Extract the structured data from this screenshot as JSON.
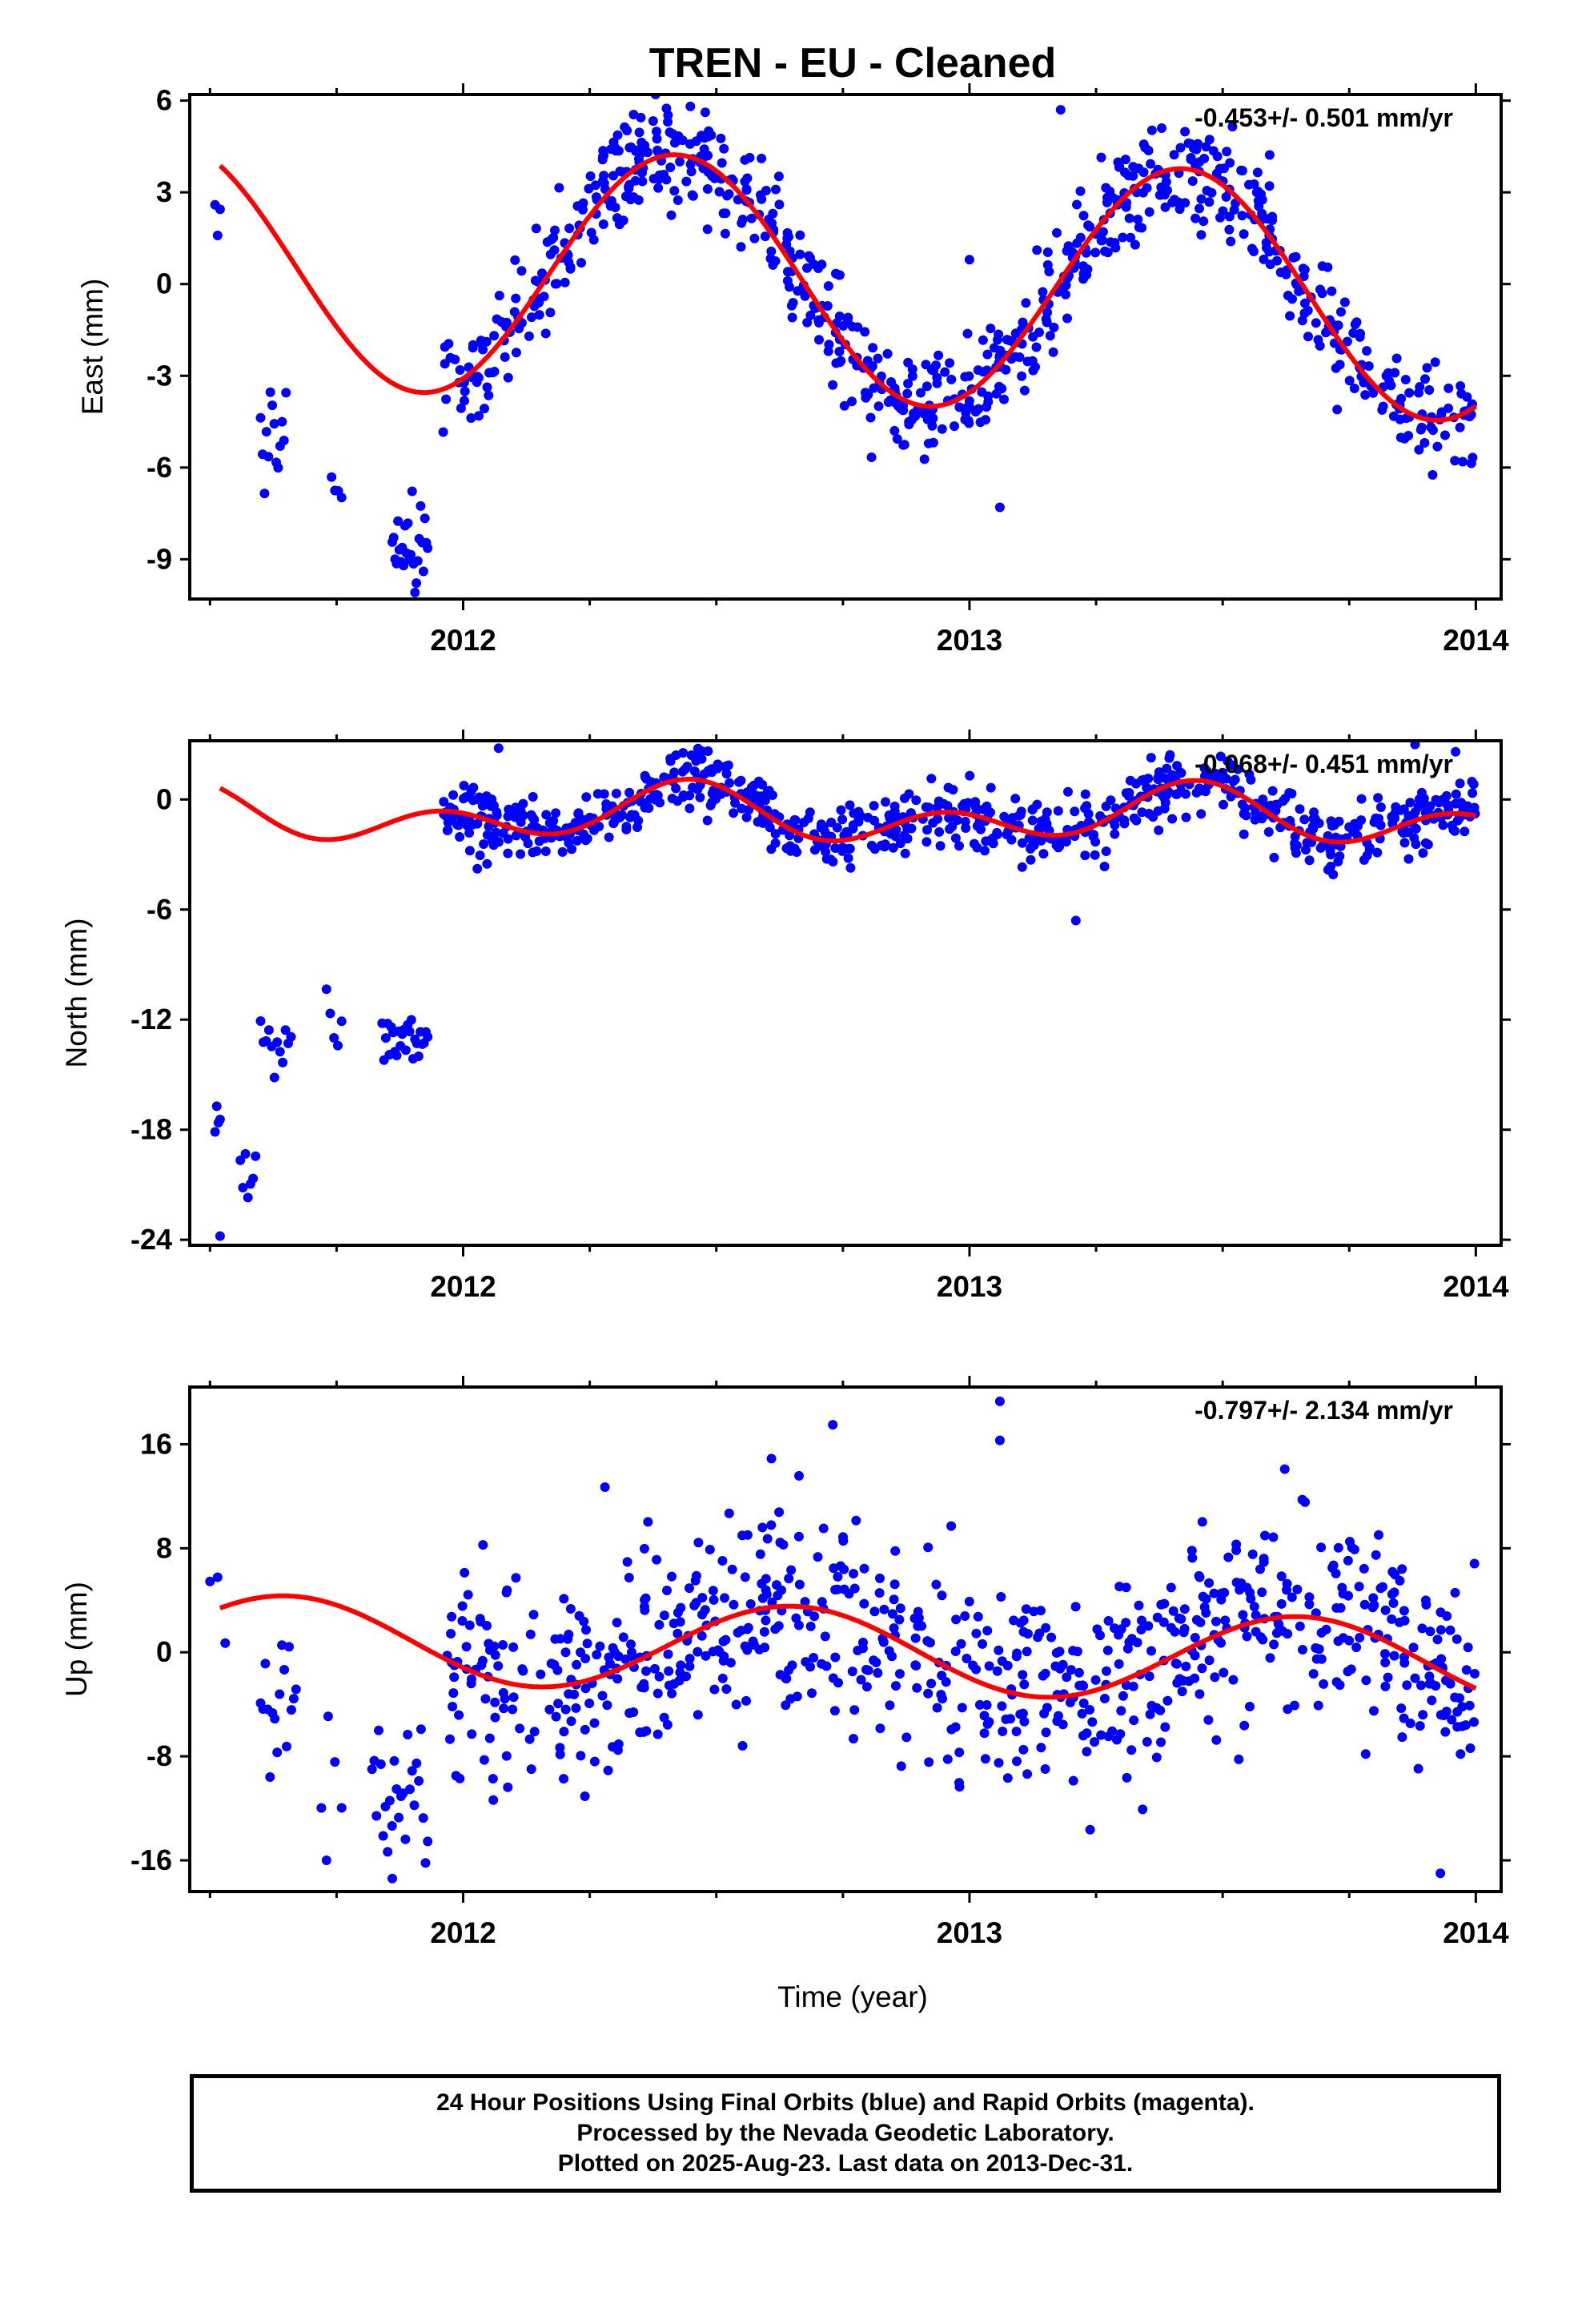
{
  "title": "TREN  - EU - Cleaned",
  "xlabel": "Time (year)",
  "footer": {
    "line1": "24 Hour Positions Using Final Orbits (blue) and Rapid Orbits (magenta).",
    "line2": "Processed by the Nevada Geodetic Laboratory.",
    "line3": "Plotted on 2025-Aug-23. Last data on 2013-Dec-31."
  },
  "colors": {
    "data": "#0000ff",
    "model": "#ff0000",
    "axis": "#000000"
  },
  "chart_data": [
    {
      "type": "scatter",
      "ylabel": "East (mm)",
      "rate": "-0.453+/- 0.501 mm/yr",
      "xlim": [
        2011.46,
        2014.05
      ],
      "ylim": [
        -10.3,
        6.2
      ],
      "yticks": [
        6,
        3,
        0,
        -3,
        -6,
        -9
      ],
      "ytick_labels": [
        "6",
        "3",
        "0",
        "-3",
        "-6",
        "-9"
      ],
      "xticks": [
        2012,
        2013,
        2014
      ],
      "xtick_labels": [
        "2012",
        "2013",
        "2014"
      ],
      "model": {
        "mean": 0.1,
        "trend": -0.453,
        "annual_amp": 4.0,
        "annual_peak": 2012.42
      },
      "clusters": [
        {
          "x0": 2011.51,
          "x1": 2011.52,
          "n": 3,
          "mean": 2.0,
          "sd": 0.4
        },
        {
          "x0": 2011.6,
          "x1": 2011.65,
          "n": 14,
          "mean": -4.8,
          "sd": 1.1
        },
        {
          "x0": 2011.74,
          "x1": 2011.76,
          "n": 4,
          "mean": -7.2,
          "sd": 0.7
        },
        {
          "x0": 2011.86,
          "x1": 2011.93,
          "n": 26,
          "mean": -8.6,
          "sd": 0.9
        }
      ],
      "series": [
        {
          "x0": 2011.96,
          "x1": 2014.0,
          "n": 780,
          "noise": 0.9
        }
      ],
      "outliers": [
        [
          2013.18,
          5.7
        ],
        [
          2013.0,
          0.8
        ],
        [
          2013.06,
          -7.3
        ],
        [
          2012.38,
          6.2
        ]
      ]
    },
    {
      "type": "scatter",
      "ylabel": "North (mm)",
      "rate": "-0.068+/- 0.451 mm/yr",
      "xlim": [
        2011.46,
        2014.05
      ],
      "ylim": [
        -24.3,
        3.2
      ],
      "yticks": [
        0,
        -6,
        -12,
        -18,
        -24
      ],
      "ytick_labels": [
        "0",
        "-6",
        "-12",
        "-18",
        "-24"
      ],
      "xticks": [
        2012,
        2013,
        2014
      ],
      "xtick_labels": [
        "2012",
        "2013",
        "2014"
      ],
      "model": {
        "mean": -0.9,
        "trend": -0.068,
        "annual_amp": 0.9,
        "annual_peak": 2012.42,
        "semi_amp": 1.1,
        "semi_peak": 2012.45
      },
      "clusters": [
        {
          "x0": 2011.51,
          "x1": 2011.52,
          "n": 4,
          "mean": -17.2,
          "sd": 0.8
        },
        {
          "x0": 2011.56,
          "x1": 2011.59,
          "n": 7,
          "mean": -20.6,
          "sd": 1.2
        },
        {
          "x0": 2011.6,
          "x1": 2011.66,
          "n": 12,
          "mean": -13.2,
          "sd": 0.8
        },
        {
          "x0": 2011.73,
          "x1": 2011.76,
          "n": 5,
          "mean": -12.9,
          "sd": 1.2
        },
        {
          "x0": 2011.84,
          "x1": 2011.93,
          "n": 26,
          "mean": -12.8,
          "sd": 0.7
        }
      ],
      "series": [
        {
          "x0": 2011.96,
          "x1": 2014.0,
          "n": 780,
          "noise": 0.85
        }
      ],
      "outliers": [
        [
          2011.52,
          -23.8
        ],
        [
          2013.21,
          -6.6
        ],
        [
          2012.07,
          2.8
        ],
        [
          2013.88,
          3.0
        ],
        [
          2013.96,
          2.6
        ]
      ]
    },
    {
      "type": "scatter",
      "ylabel": "Up (mm)",
      "rate": "-0.797+/- 2.134 mm/yr",
      "xlim": [
        2011.46,
        2014.05
      ],
      "ylim": [
        -18.4,
        20.4
      ],
      "yticks": [
        16,
        8,
        0,
        -8,
        -16
      ],
      "ytick_labels": [
        "16",
        "8",
        "0",
        "-8",
        "-16"
      ],
      "xticks": [
        2012,
        2013,
        2014
      ],
      "xtick_labels": [
        "2012",
        "2013",
        "2014"
      ],
      "model": {
        "mean": 0.2,
        "trend": -0.797,
        "annual_amp": 3.3,
        "annual_peak": 2012.65
      },
      "clusters": [
        {
          "x0": 2011.5,
          "x1": 2011.53,
          "n": 3,
          "mean": 2.0,
          "sd": 4.5
        },
        {
          "x0": 2011.6,
          "x1": 2011.67,
          "n": 16,
          "mean": -4.0,
          "sd": 4.2
        },
        {
          "x0": 2011.72,
          "x1": 2011.76,
          "n": 4,
          "mean": -9.0,
          "sd": 4.5
        },
        {
          "x0": 2011.82,
          "x1": 2011.93,
          "n": 26,
          "mean": -11.0,
          "sd": 3.0
        }
      ],
      "series": [
        {
          "x0": 2011.96,
          "x1": 2013.88,
          "n": 700,
          "noise": 4.0
        },
        {
          "x0": 2013.88,
          "x1": 2014.0,
          "n": 50,
          "noise": 3.5
        }
      ],
      "outliers": [
        [
          2013.06,
          19.3
        ],
        [
          2013.06,
          16.3
        ],
        [
          2012.73,
          17.5
        ],
        [
          2012.28,
          12.7
        ],
        [
          2011.86,
          -17.4
        ],
        [
          2013.93,
          -17.0
        ],
        [
          2011.73,
          -16.0
        ]
      ]
    }
  ]
}
